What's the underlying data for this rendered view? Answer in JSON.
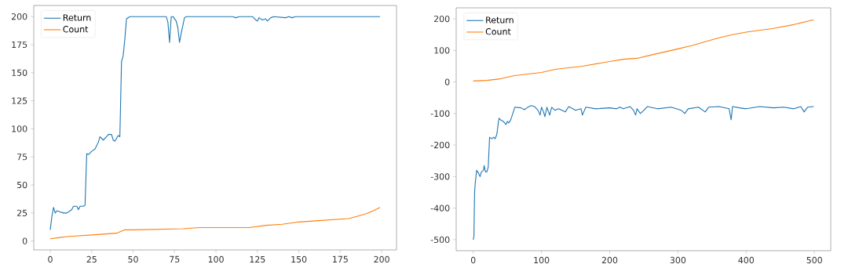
{
  "chart_data": [
    {
      "type": "line",
      "xlim": [
        -9.95,
        208.95
      ],
      "ylim": [
        -7.9,
        209.9
      ],
      "xticks": [
        0,
        25,
        50,
        75,
        100,
        125,
        150,
        175,
        200
      ],
      "yticks": [
        0,
        25,
        50,
        75,
        100,
        125,
        150,
        175,
        200
      ],
      "legend": "top left",
      "series": [
        {
          "name": "Return",
          "color": "#1f77b4",
          "x": [
            0,
            1,
            2,
            3,
            4,
            6,
            8,
            10,
            12,
            13,
            14,
            16,
            17,
            18,
            20,
            21,
            22,
            23,
            25,
            27,
            29,
            30,
            32,
            34,
            35,
            37,
            38,
            39,
            41,
            42,
            43,
            44,
            45,
            46,
            48,
            70,
            71,
            72,
            73,
            74,
            76,
            77,
            78,
            79,
            81,
            82,
            110,
            112,
            114,
            122,
            124,
            125,
            126,
            128,
            130,
            131,
            133,
            135,
            142,
            144,
            146,
            148,
            199
          ],
          "values": [
            10,
            22,
            30,
            25,
            27,
            26,
            25,
            25,
            27,
            28,
            31,
            31,
            28,
            31,
            31,
            32,
            78,
            77,
            80,
            82,
            88,
            93,
            90,
            93,
            95,
            95,
            90,
            89,
            94,
            93,
            160,
            165,
            180,
            198,
            200,
            200,
            195,
            177,
            200,
            200,
            196,
            190,
            177,
            185,
            199,
            200,
            200,
            199,
            200,
            200,
            197,
            196,
            199,
            197,
            198,
            196,
            199,
            200,
            199,
            200,
            199,
            200,
            200
          ]
        },
        {
          "name": "Count",
          "color": "#ff7f0e",
          "x": [
            0,
            5,
            10,
            20,
            30,
            40,
            45,
            50,
            80,
            90,
            120,
            130,
            140,
            150,
            160,
            170,
            180,
            185,
            190,
            195,
            199
          ],
          "values": [
            2,
            3,
            4,
            5,
            6,
            7,
            10,
            10,
            11,
            12,
            12,
            14,
            15,
            17,
            18,
            19,
            20,
            22,
            24,
            27,
            30
          ]
        }
      ]
    },
    {
      "type": "line",
      "xlim": [
        -24.95,
        523.95
      ],
      "ylim": [
        -535,
        235
      ],
      "xticks": [
        0,
        100,
        200,
        300,
        400,
        500
      ],
      "yticks": [
        -500,
        -400,
        -300,
        -200,
        -100,
        0,
        100,
        200
      ],
      "legend": "top left",
      "series": [
        {
          "name": "Return",
          "color": "#1f77b4",
          "x": [
            0,
            1,
            2,
            3,
            5,
            8,
            10,
            12,
            15,
            16,
            18,
            20,
            22,
            24,
            27,
            30,
            32,
            34,
            35,
            37,
            38,
            40,
            44,
            48,
            50,
            52,
            55,
            58,
            61,
            70,
            75,
            80,
            85,
            90,
            95,
            98,
            100,
            103,
            105,
            108,
            112,
            115,
            120,
            125,
            135,
            140,
            150,
            158,
            160,
            165,
            180,
            200,
            210,
            215,
            220,
            230,
            235,
            238,
            240,
            245,
            250,
            255,
            270,
            290,
            305,
            310,
            315,
            330,
            340,
            345,
            360,
            375,
            378,
            380,
            390,
            400,
            420,
            440,
            455,
            470,
            480,
            485,
            490,
            499
          ],
          "values": [
            -500,
            -490,
            -350,
            -320,
            -280,
            -290,
            -300,
            -285,
            -280,
            -265,
            -285,
            -285,
            -270,
            -175,
            -180,
            -175,
            -180,
            -170,
            -160,
            -125,
            -115,
            -120,
            -125,
            -135,
            -125,
            -130,
            -120,
            -100,
            -80,
            -82,
            -88,
            -80,
            -75,
            -78,
            -90,
            -105,
            -80,
            -95,
            -110,
            -80,
            -105,
            -80,
            -90,
            -85,
            -95,
            -78,
            -90,
            -85,
            -105,
            -80,
            -85,
            -82,
            -85,
            -80,
            -85,
            -78,
            -90,
            -105,
            -85,
            -100,
            -90,
            -78,
            -85,
            -80,
            -90,
            -100,
            -85,
            -80,
            -95,
            -80,
            -78,
            -85,
            -120,
            -78,
            -82,
            -85,
            -78,
            -82,
            -80,
            -85,
            -78,
            -95,
            -80,
            -78
          ]
        },
        {
          "name": "Count",
          "color": "#ff7f0e",
          "x": [
            0,
            20,
            40,
            60,
            100,
            120,
            160,
            200,
            220,
            240,
            260,
            300,
            320,
            360,
            380,
            400,
            440,
            470,
            499
          ],
          "values": [
            3,
            5,
            10,
            20,
            30,
            40,
            50,
            65,
            72,
            75,
            85,
            105,
            115,
            140,
            150,
            158,
            170,
            182,
            197
          ]
        }
      ]
    }
  ]
}
